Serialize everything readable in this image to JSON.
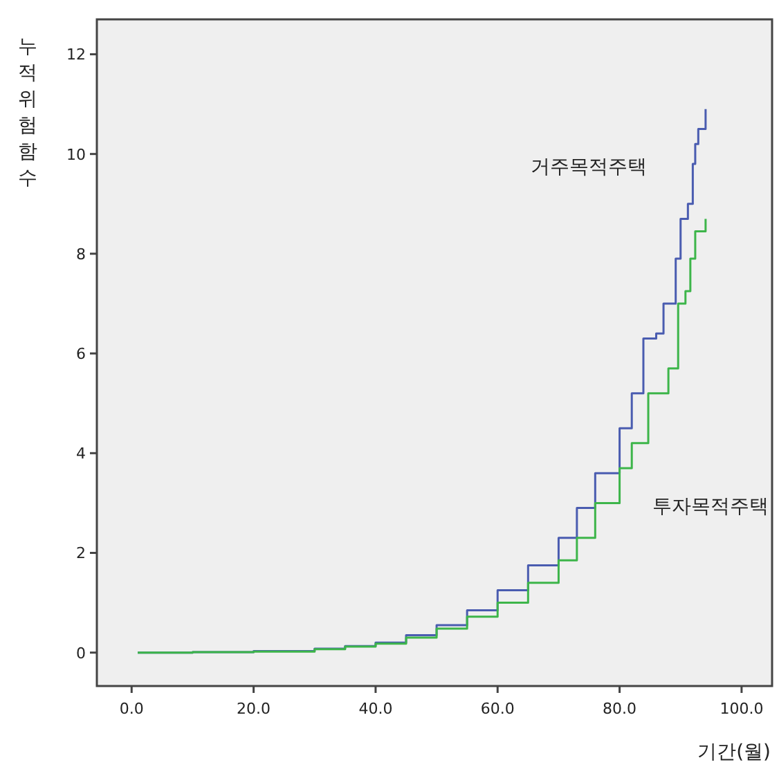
{
  "chart_data": {
    "type": "step",
    "xlabel": "기간(월)",
    "ylabel": "누적위험함수",
    "xlim": [
      -5.7,
      105
    ],
    "ylim": [
      -0.67,
      12.7
    ],
    "xticks": [
      {
        "value": 0,
        "label": "0.0"
      },
      {
        "value": 20,
        "label": "20.0"
      },
      {
        "value": 40,
        "label": "40.0"
      },
      {
        "value": 60,
        "label": "60.0"
      },
      {
        "value": 80,
        "label": "80.0"
      },
      {
        "value": 100,
        "label": "100.0"
      }
    ],
    "yticks": [
      0,
      2,
      4,
      6,
      8,
      10,
      12
    ],
    "grid": false,
    "series": [
      {
        "name": "거주목적주택",
        "color": "#4a5cb0",
        "x": [
          1,
          10,
          20,
          30,
          35,
          40,
          45,
          50,
          55,
          60,
          65,
          70,
          73,
          76,
          80,
          82,
          83.9,
          86,
          87.2,
          89.2,
          90,
          91.2,
          92,
          92.4,
          92.9,
          94.1,
          94.1
        ],
        "values": [
          0,
          0.01,
          0.03,
          0.08,
          0.13,
          0.2,
          0.35,
          0.55,
          0.85,
          1.25,
          1.75,
          2.3,
          2.9,
          3.6,
          4.5,
          5.2,
          6.3,
          6.4,
          7.0,
          7.9,
          8.7,
          9.0,
          9.8,
          10.2,
          10.5,
          10.5,
          10.9
        ]
      },
      {
        "name": "투자목적주택",
        "color": "#3db54a",
        "x": [
          1,
          10,
          20,
          30,
          35,
          40,
          45,
          50,
          55,
          60,
          65,
          70,
          73,
          76,
          80,
          82,
          84.7,
          88,
          89.6,
          90.8,
          91.6,
          92.4,
          94.1,
          94.1
        ],
        "values": [
          0,
          0.01,
          0.02,
          0.07,
          0.12,
          0.18,
          0.3,
          0.48,
          0.72,
          1.0,
          1.4,
          1.85,
          2.3,
          3.0,
          3.7,
          4.2,
          5.2,
          5.7,
          7.0,
          7.25,
          7.9,
          8.45,
          8.5,
          8.7
        ]
      }
    ]
  }
}
